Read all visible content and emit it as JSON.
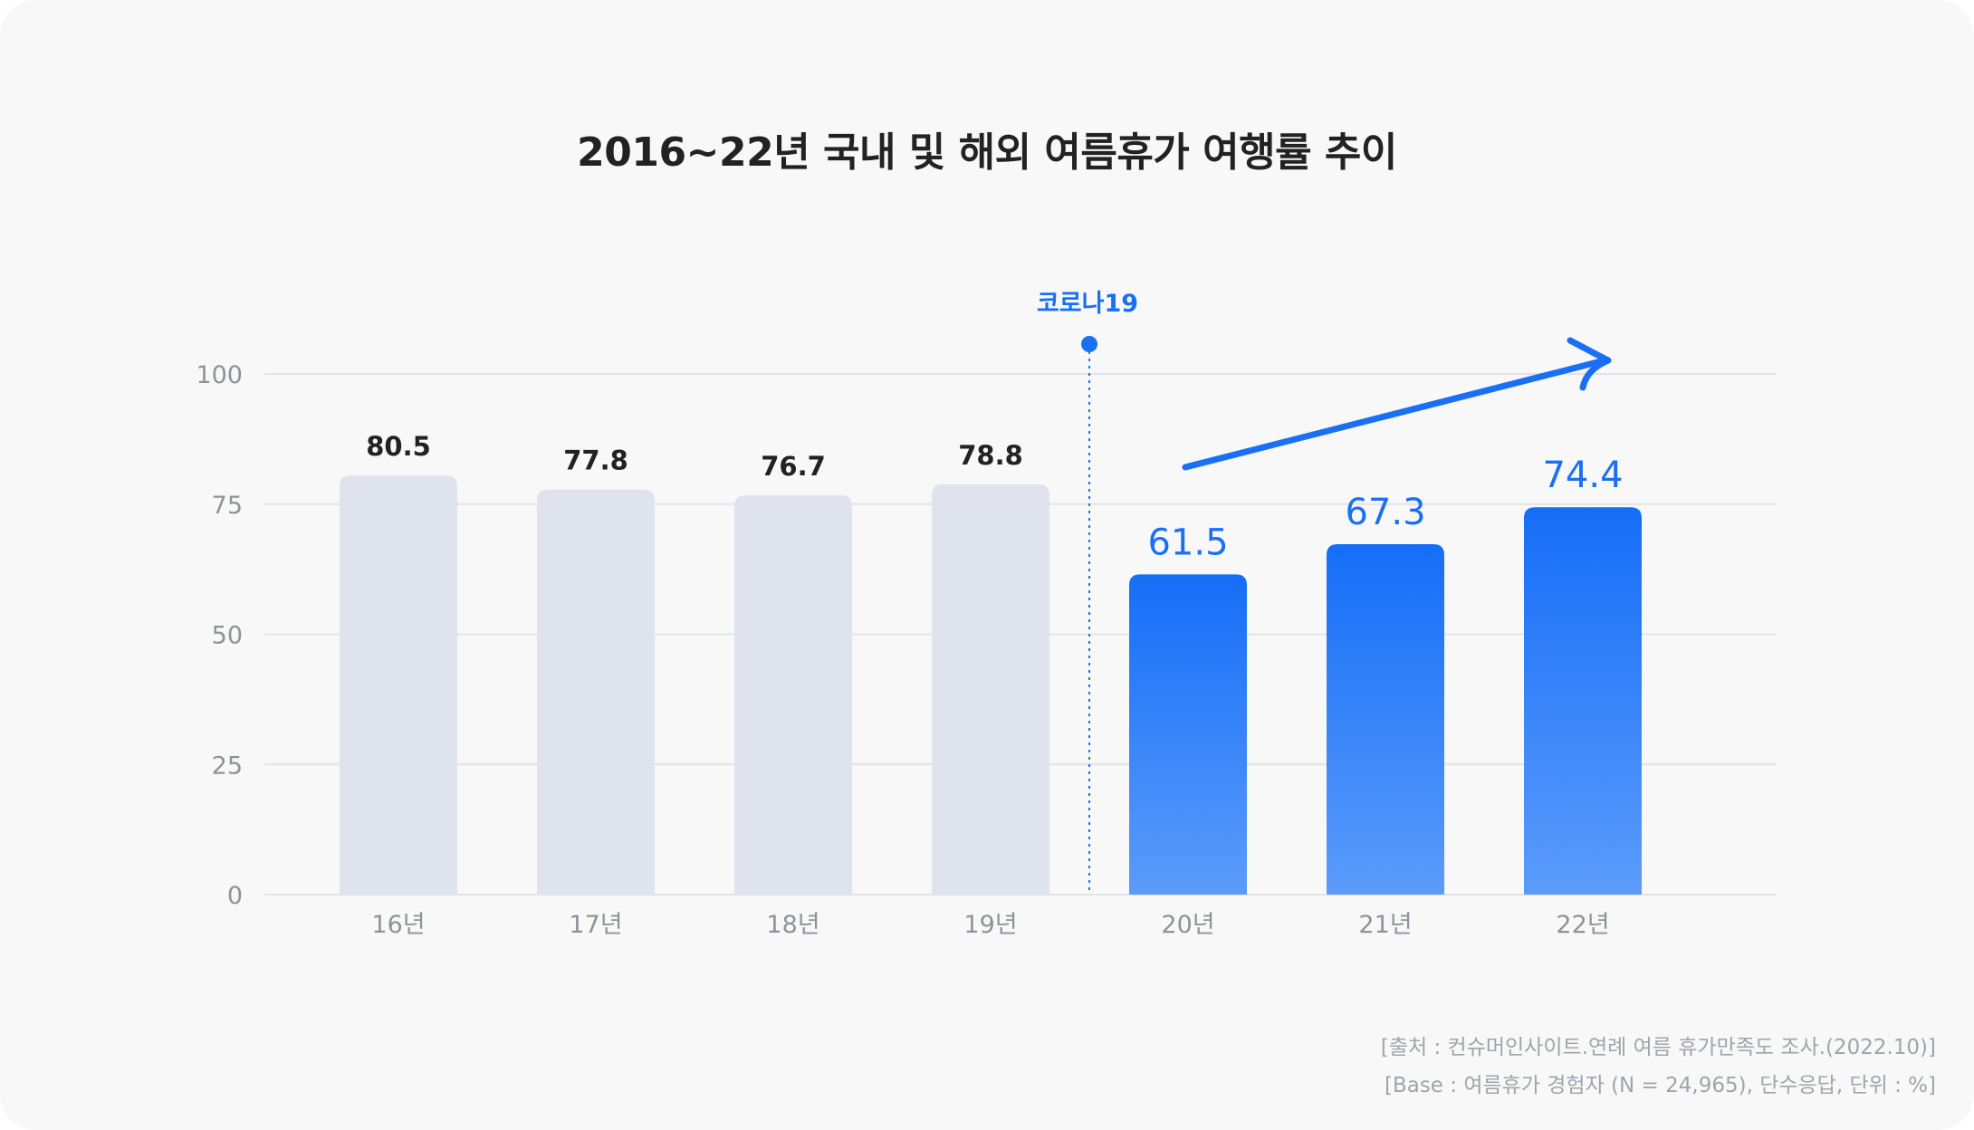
{
  "chart_data": {
    "type": "bar",
    "title": "2016~22년 국내 및 해외 여름휴가 여행률 추이",
    "categories": [
      "16년",
      "17년",
      "18년",
      "19년",
      "20년",
      "21년",
      "22년"
    ],
    "values": [
      80.5,
      77.8,
      76.7,
      78.8,
      61.5,
      67.3,
      74.4
    ],
    "ylim": [
      0,
      100
    ],
    "yticks": [
      "0",
      "25",
      "50",
      "75",
      "100"
    ],
    "grid": true,
    "annotation": {
      "label": "코로나19",
      "between": [
        "19년",
        "20년"
      ]
    },
    "trend_arrow": {
      "from": "20년",
      "to": "22년",
      "direction": "up"
    },
    "highlight_from_index": 4
  },
  "colors": {
    "pre_covid_bar": "#dfe3ee",
    "post_covid_bar_top": "#166ef7",
    "post_covid_bar_bottom": "#5b9bfb",
    "accent": "#1a6ff5",
    "label_dark": "#222222",
    "axis_text": "#8f9299",
    "grid": "#e2e3e6"
  },
  "source": {
    "line1": "[출처 : 컨슈머인사이트.연례 여름 휴가만족도 조사.(2022.10)]",
    "line2": "[Base : 여름휴가 경험자 (N = 24,965),  단수응답, 단위 : %]"
  }
}
